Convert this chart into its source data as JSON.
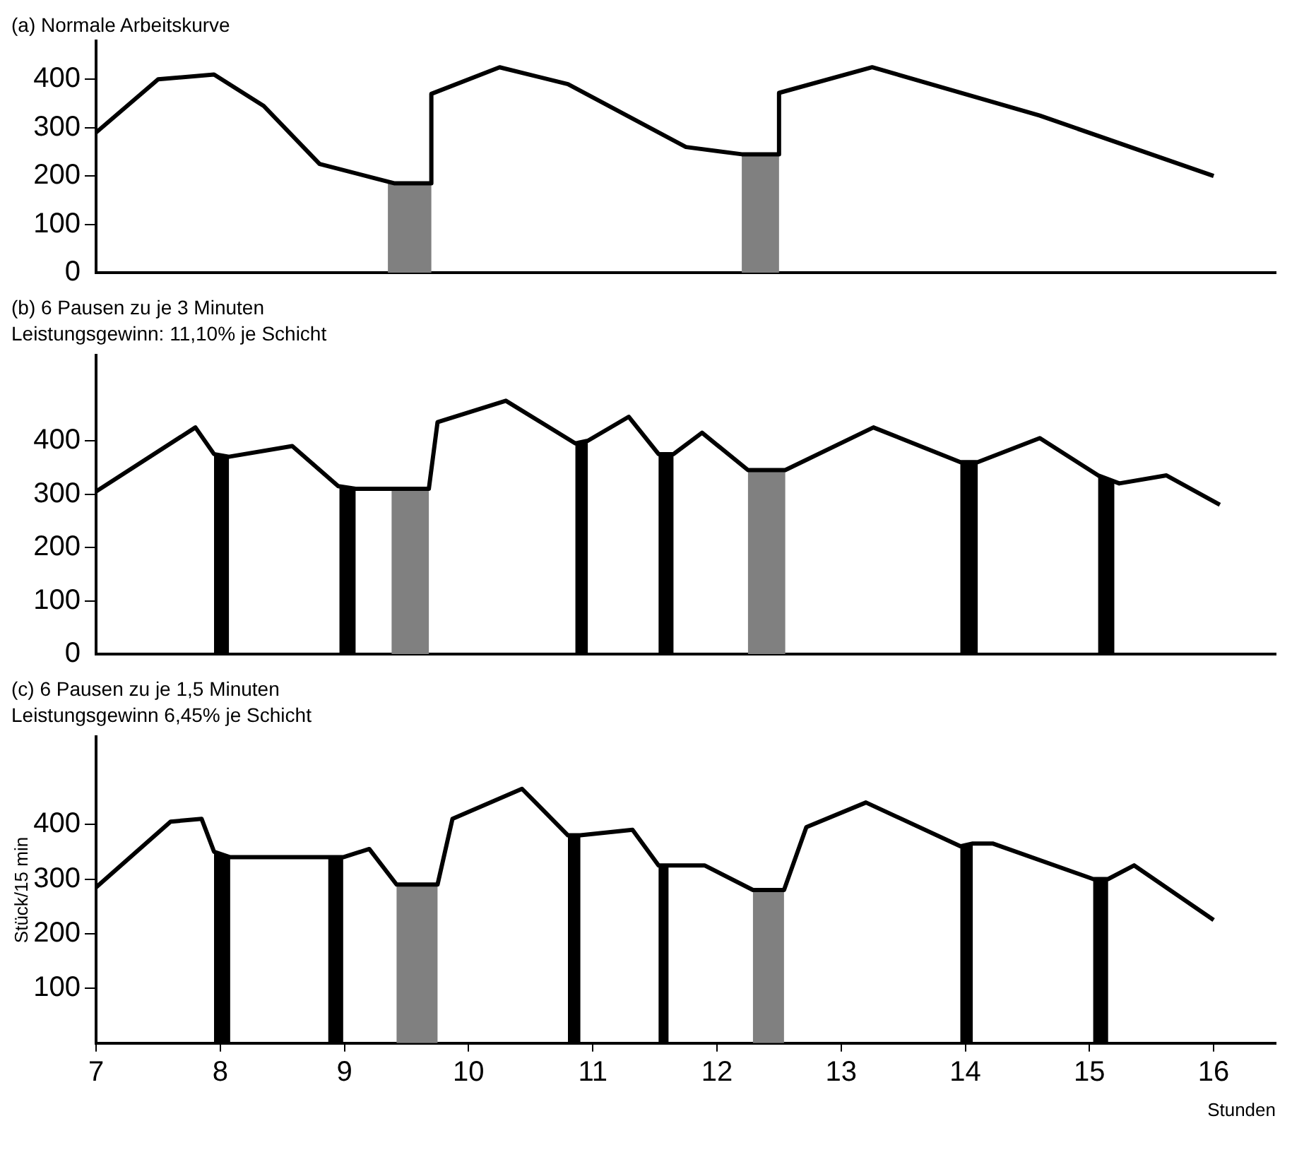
{
  "chart_data": [
    {
      "type": "line",
      "title": "(a) Normale Arbeitskurve",
      "xlim": [
        7,
        16.5
      ],
      "ylim": [
        0,
        480
      ],
      "yticks": [
        0,
        100,
        200,
        300,
        400
      ],
      "tick_labels": "y",
      "grid": false,
      "legend": false,
      "marker": "none",
      "line_style": "solid",
      "series": [
        {
          "color": "#000000",
          "x": [
            7.0,
            7.5,
            7.95,
            8.35,
            8.8,
            9.4,
            9.7,
            9.7,
            10.25,
            10.8,
            11.75,
            12.2,
            12.5,
            12.5,
            13.25,
            14.6,
            16.0
          ],
          "values": [
            290,
            400,
            410,
            345,
            225,
            185,
            185,
            370,
            425,
            390,
            260,
            245,
            245,
            372,
            425,
            325,
            200
          ]
        }
      ],
      "bands": [
        {
          "axis": "x",
          "from": 9.35,
          "to": 9.7,
          "color": "#808080"
        },
        {
          "axis": "x",
          "from": 12.2,
          "to": 12.5,
          "color": "#808080"
        }
      ]
    },
    {
      "type": "line",
      "title": "(b) 6 Pausen zu je 3 Minuten",
      "subtitle": "Leistungsgewinn: 11,10% je Schicht",
      "xlim": [
        7,
        16.5
      ],
      "ylim": [
        0,
        560
      ],
      "yticks": [
        0,
        100,
        200,
        300,
        400
      ],
      "tick_labels": "y",
      "grid": false,
      "legend": false,
      "marker": "none",
      "line_style": "solid",
      "series": [
        {
          "color": "#000000",
          "x": [
            7.0,
            7.8,
            7.95,
            8.07,
            8.58,
            8.95,
            9.09,
            9.68,
            9.75,
            10.3,
            10.86,
            10.96,
            11.29,
            11.53,
            11.65,
            11.88,
            12.25,
            12.55,
            13.26,
            13.96,
            14.1,
            14.6,
            15.07,
            15.24,
            15.62,
            16.05
          ],
          "values": [
            305,
            425,
            375,
            370,
            390,
            315,
            310,
            310,
            435,
            475,
            395,
            400,
            445,
            375,
            375,
            415,
            345,
            345,
            425,
            360,
            360,
            405,
            335,
            320,
            335,
            280
          ]
        }
      ],
      "bands": [
        {
          "axis": "x",
          "from": 7.95,
          "to": 8.07,
          "color": "#000000"
        },
        {
          "axis": "x",
          "from": 8.96,
          "to": 9.09,
          "color": "#000000"
        },
        {
          "axis": "x",
          "from": 9.38,
          "to": 9.68,
          "color": "#808080"
        },
        {
          "axis": "x",
          "from": 10.86,
          "to": 10.96,
          "color": "#000000"
        },
        {
          "axis": "x",
          "from": 11.53,
          "to": 11.65,
          "color": "#000000"
        },
        {
          "axis": "x",
          "from": 12.25,
          "to": 12.55,
          "color": "#808080"
        },
        {
          "axis": "x",
          "from": 13.96,
          "to": 14.1,
          "color": "#000000"
        },
        {
          "axis": "x",
          "from": 15.07,
          "to": 15.2,
          "color": "#000000"
        }
      ]
    },
    {
      "type": "line",
      "title": "(c) 6 Pausen zu je 1,5 Minuten",
      "subtitle": "Leistungsgewinn 6,45% je Schicht",
      "xlabel": "Stunden",
      "ylabel": "Stück/15 min",
      "xlim": [
        7,
        16.5
      ],
      "xticks": [
        7,
        8,
        9,
        10,
        11,
        12,
        13,
        14,
        15,
        16
      ],
      "ylim": [
        0,
        560
      ],
      "yticks": [
        100,
        200,
        300,
        400
      ],
      "grid": false,
      "legend": false,
      "marker": "none",
      "line_style": "solid",
      "series": [
        {
          "color": "#000000",
          "x": [
            7.0,
            7.6,
            7.85,
            7.95,
            8.08,
            8.87,
            8.99,
            9.2,
            9.42,
            9.75,
            9.87,
            10.43,
            10.8,
            10.9,
            11.32,
            11.53,
            11.61,
            11.9,
            12.29,
            12.54,
            12.72,
            13.2,
            13.96,
            14.06,
            14.22,
            15.03,
            15.15,
            15.36,
            16.0
          ],
          "values": [
            285,
            405,
            410,
            350,
            340,
            340,
            340,
            355,
            290,
            290,
            410,
            465,
            380,
            380,
            390,
            325,
            325,
            325,
            280,
            280,
            395,
            440,
            360,
            365,
            365,
            300,
            300,
            325,
            225
          ]
        }
      ],
      "bands": [
        {
          "axis": "x",
          "from": 7.95,
          "to": 8.08,
          "color": "#000000"
        },
        {
          "axis": "x",
          "from": 8.87,
          "to": 8.99,
          "color": "#000000"
        },
        {
          "axis": "x",
          "from": 9.42,
          "to": 9.75,
          "color": "#808080"
        },
        {
          "axis": "x",
          "from": 10.8,
          "to": 10.9,
          "color": "#000000"
        },
        {
          "axis": "x",
          "from": 11.53,
          "to": 11.61,
          "color": "#000000"
        },
        {
          "axis": "x",
          "from": 12.29,
          "to": 12.54,
          "color": "#808080"
        },
        {
          "axis": "x",
          "from": 13.96,
          "to": 14.06,
          "color": "#000000"
        },
        {
          "axis": "x",
          "from": 15.03,
          "to": 15.15,
          "color": "#000000"
        }
      ]
    }
  ]
}
